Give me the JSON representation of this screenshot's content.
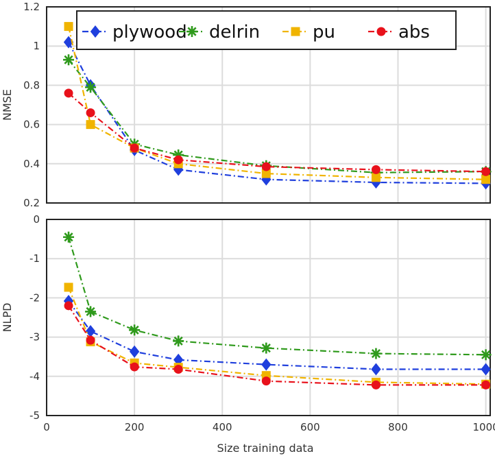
{
  "chart_data": {
    "shared_xlabel": "Size training data",
    "legend": [
      {
        "name": "plywood",
        "color": "#1f3fdd",
        "marker": "diamond"
      },
      {
        "name": "delrin",
        "color": "#2f9a1c",
        "marker": "asterisk"
      },
      {
        "name": "pu",
        "color": "#f0b400",
        "marker": "square"
      },
      {
        "name": "abs",
        "color": "#e8111b",
        "marker": "circle"
      }
    ],
    "x_ticks": [
      "0",
      "200",
      "400",
      "600",
      "800",
      "1000"
    ],
    "panels": [
      {
        "type": "line",
        "ylabel": "NMSE",
        "xlim": [
          0,
          1010
        ],
        "ylim": [
          0.2,
          1.2
        ],
        "y_ticks": [
          "0.2",
          "0.4",
          "0.6",
          "0.8",
          "1",
          "1.2"
        ],
        "x_ticks_shown": false,
        "grid": true,
        "legend_position": "top",
        "x": [
          50,
          100,
          200,
          300,
          500,
          750,
          1000
        ],
        "series": [
          {
            "name": "plywood",
            "values": [
              1.02,
              0.8,
              0.47,
              0.37,
              0.32,
              0.305,
              0.3
            ]
          },
          {
            "name": "delrin",
            "values": [
              0.93,
              0.79,
              0.5,
              0.445,
              0.39,
              0.355,
              0.36
            ]
          },
          {
            "name": "pu",
            "values": [
              1.1,
              0.6,
              0.48,
              0.4,
              0.35,
              0.33,
              0.32
            ]
          },
          {
            "name": "abs",
            "values": [
              0.76,
              0.66,
              0.48,
              0.42,
              0.385,
              0.37,
              0.36
            ]
          }
        ]
      },
      {
        "type": "line",
        "ylabel": "NLPD",
        "xlim": [
          0,
          1010
        ],
        "ylim": [
          -5,
          0
        ],
        "y_ticks": [
          "-5",
          "-4",
          "-3",
          "-2",
          "-1",
          "0"
        ],
        "x_ticks_shown": true,
        "grid": true,
        "x": [
          50,
          100,
          200,
          300,
          500,
          750,
          1000
        ],
        "series": [
          {
            "name": "plywood",
            "values": [
              -2.08,
              -2.85,
              -3.37,
              -3.58,
              -3.7,
              -3.82,
              -3.82
            ]
          },
          {
            "name": "delrin",
            "values": [
              -0.45,
              -2.35,
              -2.82,
              -3.1,
              -3.28,
              -3.42,
              -3.45
            ]
          },
          {
            "name": "pu",
            "values": [
              -1.73,
              -3.12,
              -3.66,
              -3.77,
              -3.98,
              -4.15,
              -4.2
            ]
          },
          {
            "name": "abs",
            "values": [
              -2.2,
              -3.08,
              -3.76,
              -3.82,
              -4.12,
              -4.22,
              -4.22
            ]
          }
        ]
      }
    ]
  }
}
